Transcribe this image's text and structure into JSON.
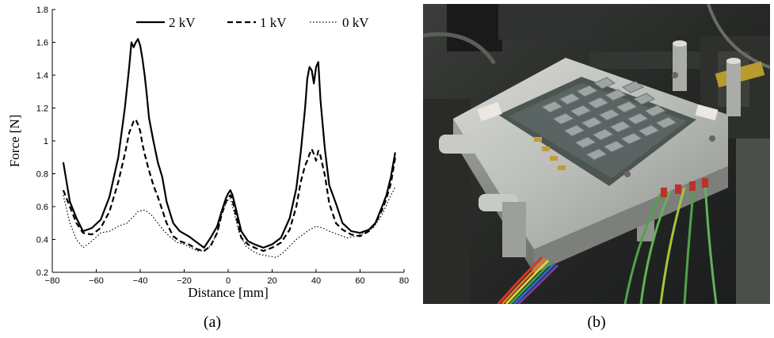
{
  "chart_data": {
    "type": "line",
    "xlabel": "Distance [mm]",
    "ylabel": "Force [N]",
    "xlim": [
      -80,
      80
    ],
    "ylim": [
      0.2,
      1.8
    ],
    "xticks": [
      -80,
      -60,
      -40,
      -20,
      0,
      20,
      40,
      60,
      80
    ],
    "yticks": [
      0.2,
      0.4,
      0.6,
      0.8,
      1,
      1.2,
      1.4,
      1.6,
      1.8
    ],
    "xtick_labels": [
      "−80",
      "−60",
      "−40",
      "−20",
      "0",
      "20",
      "40",
      "60",
      "80"
    ],
    "ytick_labels": [
      "0.2",
      "0.4",
      "0.6",
      "0.8",
      "1",
      "1.2",
      "1.4",
      "1.6",
      "1.8"
    ],
    "grid": false,
    "legend_position": "top",
    "series": [
      {
        "name": "2 kV",
        "style": "solid",
        "x": [
          -75,
          -72,
          -69,
          -66,
          -62,
          -58,
          -54,
          -50,
          -47,
          -45,
          -44,
          -43,
          -42,
          -41,
          -40,
          -39,
          -38,
          -37,
          -36,
          -34,
          -32,
          -30,
          -28,
          -25,
          -22,
          -18,
          -14,
          -11,
          -8,
          -5,
          -3,
          -1,
          0,
          1,
          2,
          4,
          6,
          9,
          12,
          16,
          20,
          24,
          28,
          31,
          33,
          35,
          36,
          37,
          38,
          39,
          40,
          41,
          42,
          44,
          46,
          49,
          52,
          56,
          60,
          64,
          67,
          70,
          72,
          74,
          76
        ],
        "y": [
          0.87,
          0.63,
          0.53,
          0.45,
          0.47,
          0.52,
          0.66,
          0.9,
          1.2,
          1.45,
          1.6,
          1.57,
          1.6,
          1.62,
          1.58,
          1.5,
          1.4,
          1.28,
          1.14,
          1.0,
          0.87,
          0.78,
          0.63,
          0.5,
          0.45,
          0.42,
          0.38,
          0.35,
          0.41,
          0.48,
          0.57,
          0.65,
          0.68,
          0.7,
          0.67,
          0.56,
          0.45,
          0.39,
          0.37,
          0.35,
          0.37,
          0.41,
          0.53,
          0.71,
          0.93,
          1.2,
          1.38,
          1.45,
          1.43,
          1.35,
          1.45,
          1.48,
          1.25,
          0.95,
          0.73,
          0.62,
          0.5,
          0.45,
          0.44,
          0.46,
          0.5,
          0.6,
          0.67,
          0.78,
          0.93
        ]
      },
      {
        "name": "1 kV",
        "style": "dashed",
        "x": [
          -75,
          -72,
          -69,
          -66,
          -62,
          -58,
          -54,
          -50,
          -47,
          -45,
          -43,
          -42,
          -41,
          -40,
          -39,
          -38,
          -36,
          -34,
          -32,
          -30,
          -28,
          -25,
          -22,
          -18,
          -14,
          -11,
          -8,
          -5,
          -3,
          -1,
          0,
          1,
          2,
          4,
          6,
          9,
          12,
          16,
          20,
          24,
          28,
          31,
          33,
          35,
          36,
          37,
          38,
          39,
          40,
          41,
          42,
          44,
          46,
          49,
          52,
          56,
          60,
          64,
          67,
          70,
          72,
          74,
          76
        ],
        "y": [
          0.7,
          0.6,
          0.5,
          0.44,
          0.43,
          0.47,
          0.57,
          0.75,
          0.92,
          1.05,
          1.12,
          1.13,
          1.1,
          1.06,
          0.98,
          0.92,
          0.82,
          0.73,
          0.66,
          0.58,
          0.5,
          0.42,
          0.39,
          0.37,
          0.34,
          0.33,
          0.36,
          0.44,
          0.55,
          0.63,
          0.65,
          0.67,
          0.64,
          0.52,
          0.41,
          0.37,
          0.35,
          0.33,
          0.35,
          0.38,
          0.46,
          0.6,
          0.75,
          0.85,
          0.88,
          0.92,
          0.95,
          0.92,
          0.88,
          0.94,
          0.91,
          0.79,
          0.62,
          0.5,
          0.46,
          0.43,
          0.42,
          0.45,
          0.5,
          0.58,
          0.65,
          0.74,
          0.9
        ]
      },
      {
        "name": "0 kV",
        "style": "dotted",
        "x": [
          -75,
          -72,
          -69,
          -66,
          -62,
          -58,
          -54,
          -50,
          -46,
          -43,
          -41,
          -38,
          -35,
          -32,
          -29,
          -26,
          -23,
          -20,
          -17,
          -14,
          -11,
          -8,
          -5,
          -3,
          -1,
          0,
          1,
          3,
          5,
          8,
          11,
          14,
          18,
          22,
          25,
          28,
          31,
          34,
          37,
          40,
          43,
          46,
          50,
          54,
          58,
          62,
          66,
          70,
          73,
          76
        ],
        "y": [
          0.67,
          0.5,
          0.4,
          0.35,
          0.39,
          0.44,
          0.45,
          0.48,
          0.5,
          0.54,
          0.57,
          0.58,
          0.55,
          0.5,
          0.45,
          0.41,
          0.38,
          0.37,
          0.35,
          0.33,
          0.33,
          0.36,
          0.44,
          0.55,
          0.62,
          0.64,
          0.65,
          0.55,
          0.44,
          0.36,
          0.33,
          0.31,
          0.3,
          0.29,
          0.32,
          0.36,
          0.4,
          0.43,
          0.46,
          0.48,
          0.47,
          0.45,
          0.43,
          0.41,
          0.42,
          0.44,
          0.47,
          0.55,
          0.64,
          0.72
        ]
      }
    ]
  },
  "captions": {
    "left": "(a)",
    "right": "(b)"
  },
  "photo": {
    "description_icon": "actuator-array-photo",
    "background": "#2a2c2e"
  }
}
